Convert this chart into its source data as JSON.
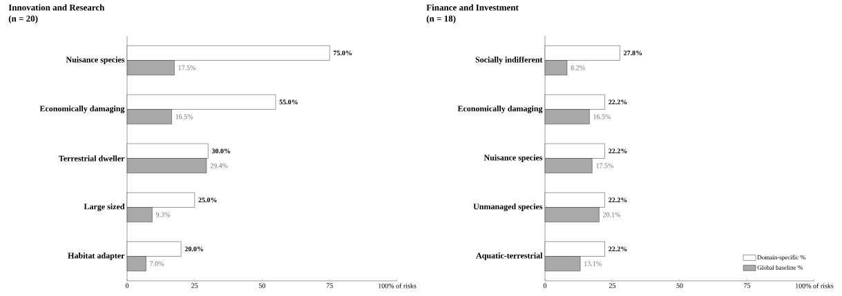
{
  "chart_data": [
    {
      "type": "bar",
      "orientation": "horizontal",
      "title": "Innovation and Research",
      "subtitle": "(n = 20)",
      "categories": [
        "Nuisance species",
        "Economically damaging",
        "Terrestrial dweller",
        "Large sized",
        "Habitat adapter"
      ],
      "series": [
        {
          "color": "#ffffff",
          "values": [
            75.0,
            55.0,
            30.0,
            25.0,
            20.0
          ],
          "value_labels": [
            "75.0%",
            "55.0%",
            "30.0%",
            "25.0%",
            "20.0%"
          ]
        },
        {
          "color": "#a9a9a9",
          "values": [
            17.5,
            16.5,
            29.4,
            9.3,
            7.0
          ],
          "value_labels": [
            "17.5%",
            "16.5%",
            "29.4%",
            "9.3%",
            "7.0%"
          ]
        }
      ],
      "xlim": [
        0,
        100
      ],
      "xticks": [
        0,
        25,
        50,
        75,
        {
          "value": 100,
          "label": "100% of risks"
        }
      ],
      "grid": false,
      "legend": false
    },
    {
      "type": "bar",
      "orientation": "horizontal",
      "title": "Finance and Investment",
      "subtitle": "(n = 18)",
      "categories": [
        "Socially indifferent",
        "Economically damaging",
        "Nuisance species",
        "Unmanaged species",
        "Aquatic-terrestrial"
      ],
      "series": [
        {
          "name": "Domain-specific %",
          "color": "#ffffff",
          "values": [
            27.8,
            22.2,
            22.2,
            22.2,
            22.2
          ],
          "value_labels": [
            "27.8%",
            "22.2%",
            "22.2%",
            "22.2%",
            "22.2%"
          ]
        },
        {
          "name": "Global baseline %",
          "color": "#a9a9a9",
          "values": [
            8.2,
            16.5,
            17.5,
            20.1,
            13.1
          ],
          "value_labels": [
            "8.2%",
            "16.5%",
            "17.5%",
            "20.1%",
            "13.1%"
          ]
        }
      ],
      "xlim": [
        0,
        100
      ],
      "xticks": [
        0,
        25,
        50,
        75,
        {
          "value": 100,
          "label": "100% of risks"
        }
      ],
      "grid": false,
      "legend": "bottom right"
    }
  ]
}
